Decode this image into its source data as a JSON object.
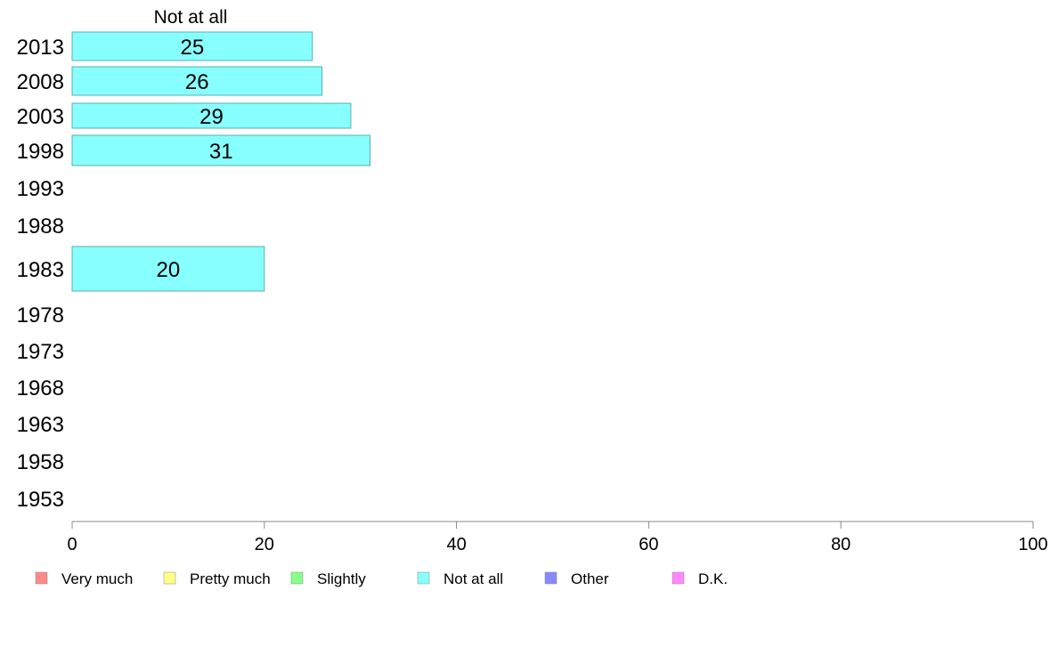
{
  "chart_data": {
    "type": "bar",
    "orientation": "horizontal",
    "column_header": "Not at all",
    "categories": [
      "2013",
      "2008",
      "2003",
      "1998",
      "1993",
      "1988",
      "1983",
      "1978",
      "1973",
      "1968",
      "1963",
      "1958",
      "1953"
    ],
    "series": [
      {
        "name": "Not at all",
        "color": "#88ffff",
        "values": [
          25,
          26,
          29,
          31,
          null,
          null,
          20,
          null,
          null,
          null,
          null,
          null,
          null
        ],
        "labels": [
          "25",
          "26",
          "29",
          "31",
          "",
          "",
          "20",
          "",
          "",
          "",
          "",
          "",
          ""
        ]
      }
    ],
    "xlim": [
      0,
      100
    ],
    "xticks": [
      0,
      20,
      40,
      60,
      80,
      100
    ],
    "xtick_labels": [
      "0",
      "20",
      "40",
      "60",
      "80",
      "100"
    ],
    "grid": false,
    "legend_position": "bottom",
    "legend": [
      {
        "label": "Very much",
        "color": "#ff8888"
      },
      {
        "label": "Pretty much",
        "color": "#ffff88"
      },
      {
        "label": "Slightly",
        "color": "#88ff88"
      },
      {
        "label": "Not at all",
        "color": "#88ffff"
      },
      {
        "label": "Other",
        "color": "#8888ff"
      },
      {
        "label": "D.K.",
        "color": "#ff88ff"
      }
    ]
  }
}
